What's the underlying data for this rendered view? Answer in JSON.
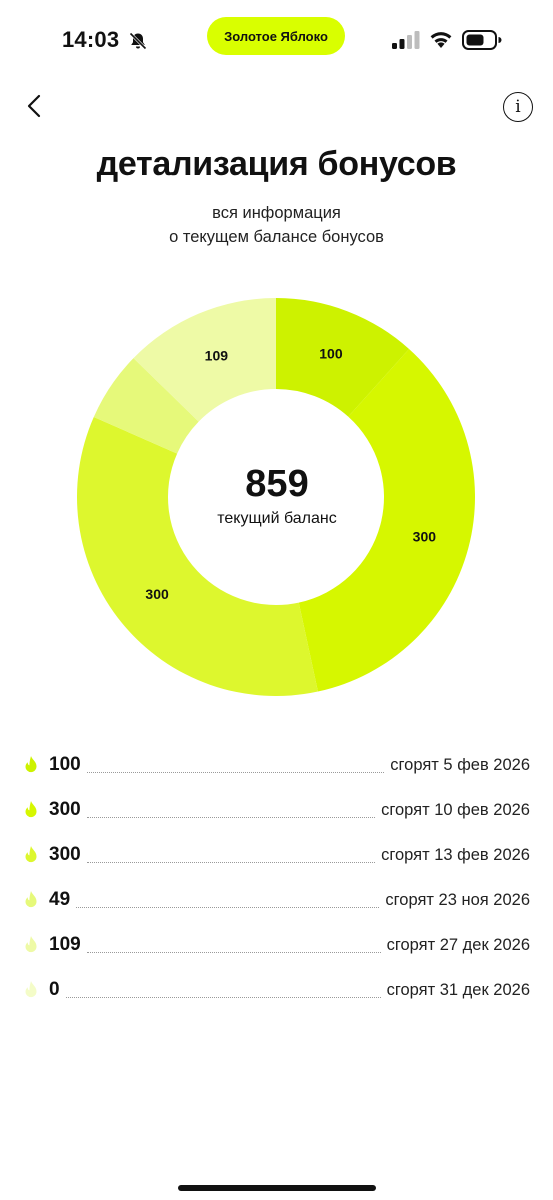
{
  "status_bar": {
    "time": "14:03",
    "pill_label": "Золотое Яблоко",
    "icons": [
      "bell-muted-icon",
      "signal-icon",
      "wifi-icon",
      "battery-icon"
    ]
  },
  "header": {
    "title": "детализация бонусов",
    "subtitle_line1": "вся информация",
    "subtitle_line2": "о текущем балансе бонусов",
    "info_label": "i"
  },
  "balance": {
    "value": "859",
    "label": "текущий баланс"
  },
  "chart_data": {
    "type": "pie",
    "total": 859,
    "slices": [
      {
        "value": 100,
        "label": "100",
        "color": "#cdf200"
      },
      {
        "value": 300,
        "label": "300",
        "color": "#d6f700"
      },
      {
        "value": 300,
        "label": "300",
        "color": "#ddf72e"
      },
      {
        "value": 49,
        "label": "",
        "color": "#e6f97a"
      },
      {
        "value": 109,
        "label": "109",
        "color": "#eefaa6"
      },
      {
        "value": 0,
        "label": "",
        "color": "#f4fcc8"
      }
    ]
  },
  "bonuses": [
    {
      "amount": "100",
      "expiry": "сгорят 5 фев 2026",
      "color": "#cdf200"
    },
    {
      "amount": "300",
      "expiry": "сгорят 10 фев 2026",
      "color": "#d6f700"
    },
    {
      "amount": "300",
      "expiry": "сгорят 13 фев 2026",
      "color": "#ddf72e"
    },
    {
      "amount": "49",
      "expiry": "сгорят 23 ноя 2026",
      "color": "#e6f97a"
    },
    {
      "amount": "109",
      "expiry": "сгорят 27 дек 2026",
      "color": "#eefaa6"
    },
    {
      "amount": "0",
      "expiry": "сгорят 31 дек 2026",
      "color": "#f4fcc8"
    }
  ]
}
